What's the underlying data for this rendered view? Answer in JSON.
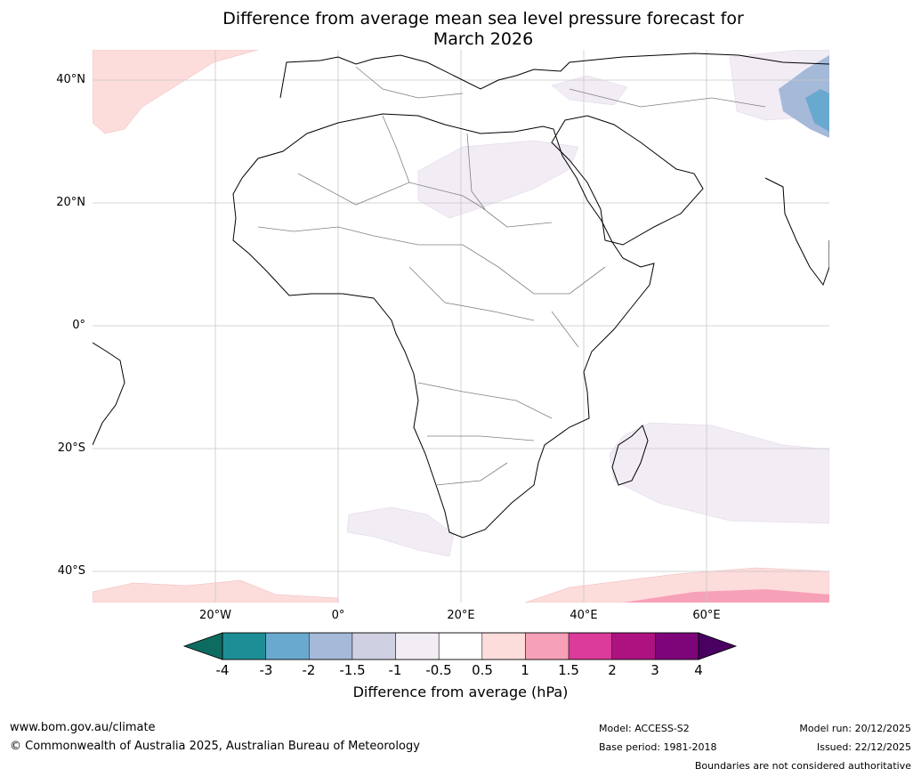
{
  "title": {
    "line1": "Difference from average mean sea level pressure forecast for",
    "line2": "March 2026"
  },
  "map": {
    "lat_labels": [
      "40°N",
      "20°N",
      "0°",
      "20°S",
      "40°S"
    ],
    "lon_labels": [
      "20°W",
      "0°",
      "20°E",
      "40°E",
      "60°E"
    ],
    "extent": {
      "lon_min": -40,
      "lon_max": 80,
      "lat_min": -45,
      "lat_max": 45
    }
  },
  "colorbar": {
    "tick_labels": [
      "-4",
      "-3",
      "-2",
      "-1.5",
      "-1",
      "-0.5",
      "0.5",
      "1",
      "1.5",
      "2",
      "3",
      "4"
    ],
    "colors": [
      "#1e8e96",
      "#6aa9cf",
      "#a5b9d8",
      "#d0d0e3",
      "#f2ecf4",
      "#ffffff",
      "#fddcdc",
      "#f7a1b8",
      "#db3b9b",
      "#ad1280",
      "#7d0579"
    ],
    "under_color": "#0e6b60",
    "over_color": "#4a0061",
    "label": "Difference from average (hPa)"
  },
  "footer": {
    "website": "www.bom.gov.au/climate",
    "copyright": "© Commonwealth of Australia 2025, Australian Bureau of Meteorology",
    "model": "Model: ACCESS-S2",
    "base_period": "Base period: 1981-2018",
    "model_run": "Model run: 20/12/2025",
    "issued": "Issued: 22/12/2025",
    "disclaimer": "Boundaries are not considered authoritative"
  }
}
